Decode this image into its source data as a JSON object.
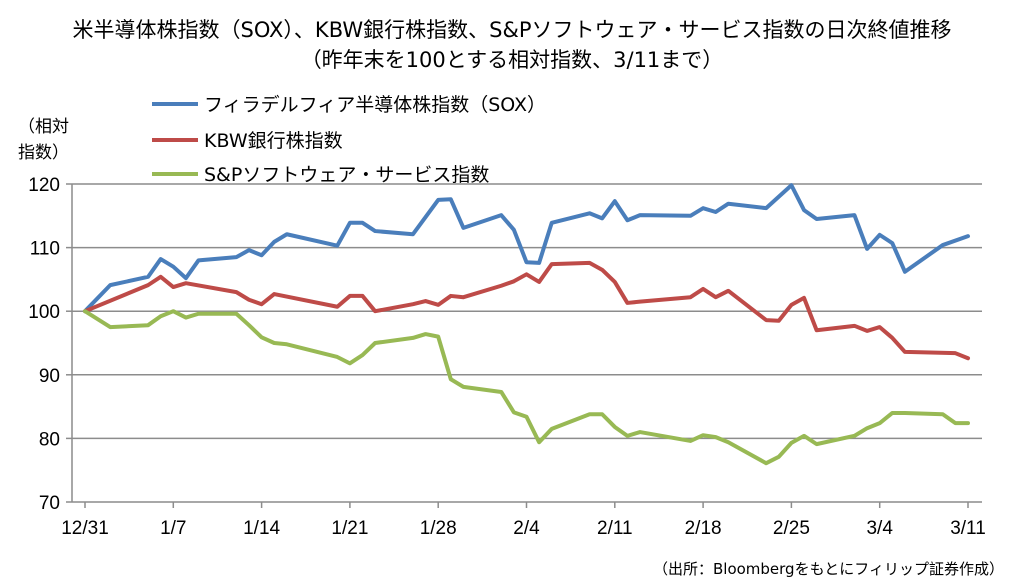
{
  "title_line1": "米半導体株指数（SOX）、KBW銀行株指数、S&Pソフトウェア・サービス指数の日次終値推移",
  "title_line2": "（昨年末を100とする相対指数、3/11まで）",
  "ylabel_line1": "（相対",
  "ylabel_line2": "指数）",
  "source": "（出所：Bloombergをもとにフィリップ証券作成）",
  "chart_data": {
    "type": "line",
    "title": "米半導体株指数（SOX）、KBW銀行株指数、S&Pソフトウェア・サービス指数の日次終値推移",
    "subtitle": "（昨年末を100とする相対指数、3/11まで）",
    "xlabel": "",
    "ylabel": "（相対指数）",
    "x_unit": "days since 12/31",
    "xlim": [
      0,
      70
    ],
    "ylim": [
      70,
      120
    ],
    "yticks": [
      70,
      80,
      90,
      100,
      110,
      120
    ],
    "xticks": [
      {
        "x": 0,
        "label": "12/31"
      },
      {
        "x": 7,
        "label": "1/7"
      },
      {
        "x": 14,
        "label": "1/14"
      },
      {
        "x": 21,
        "label": "1/21"
      },
      {
        "x": 28,
        "label": "1/28"
      },
      {
        "x": 35,
        "label": "2/4"
      },
      {
        "x": 42,
        "label": "2/11"
      },
      {
        "x": 49,
        "label": "2/18"
      },
      {
        "x": 56,
        "label": "2/25"
      },
      {
        "x": 63,
        "label": "3/4"
      },
      {
        "x": 70,
        "label": "3/11"
      }
    ],
    "grid": true,
    "legend_position": "top-left",
    "series": [
      {
        "name": "フィラデルフィア半導体株指数（SOX）",
        "color": "#4a7ebb",
        "points": [
          [
            0,
            100
          ],
          [
            2,
            104.1
          ],
          [
            5,
            105.4
          ],
          [
            6,
            108.2
          ],
          [
            7,
            107.0
          ],
          [
            8,
            105.2
          ],
          [
            9,
            108.0
          ],
          [
            12,
            108.5
          ],
          [
            13,
            109.6
          ],
          [
            14,
            108.8
          ],
          [
            15,
            110.9
          ],
          [
            16,
            112.1
          ],
          [
            20,
            110.3
          ],
          [
            21,
            113.9
          ],
          [
            22,
            113.9
          ],
          [
            23,
            112.6
          ],
          [
            26,
            112.1
          ],
          [
            28,
            117.5
          ],
          [
            29,
            117.6
          ],
          [
            30,
            113.1
          ],
          [
            33,
            115.1
          ],
          [
            34,
            112.8
          ],
          [
            35,
            107.7
          ],
          [
            36,
            107.6
          ],
          [
            37,
            113.9
          ],
          [
            40,
            115.4
          ],
          [
            41,
            114.6
          ],
          [
            42,
            117.3
          ],
          [
            43,
            114.3
          ],
          [
            44,
            115.1
          ],
          [
            48,
            115.0
          ],
          [
            49,
            116.2
          ],
          [
            50,
            115.6
          ],
          [
            51,
            116.9
          ],
          [
            54,
            116.2
          ],
          [
            56,
            119.8
          ],
          [
            57,
            115.9
          ],
          [
            58,
            114.5
          ],
          [
            61,
            115.1
          ],
          [
            62,
            109.8
          ],
          [
            63,
            112.0
          ],
          [
            64,
            110.7
          ],
          [
            65,
            106.2
          ],
          [
            68,
            110.4
          ],
          [
            70,
            111.8
          ]
        ]
      },
      {
        "name": "KBW銀行株指数",
        "color": "#be4b48",
        "points": [
          [
            0,
            100
          ],
          [
            5,
            104.1
          ],
          [
            6,
            105.4
          ],
          [
            7,
            103.8
          ],
          [
            8,
            104.4
          ],
          [
            12,
            103.0
          ],
          [
            13,
            101.8
          ],
          [
            14,
            101.1
          ],
          [
            15,
            102.7
          ],
          [
            20,
            100.7
          ],
          [
            21,
            102.4
          ],
          [
            22,
            102.4
          ],
          [
            23,
            100.0
          ],
          [
            26,
            101.1
          ],
          [
            27,
            101.6
          ],
          [
            28,
            101.0
          ],
          [
            29,
            102.4
          ],
          [
            30,
            102.2
          ],
          [
            33,
            104.0
          ],
          [
            34,
            104.7
          ],
          [
            35,
            105.8
          ],
          [
            36,
            104.6
          ],
          [
            37,
            107.4
          ],
          [
            40,
            107.6
          ],
          [
            41,
            106.5
          ],
          [
            42,
            104.6
          ],
          [
            43,
            101.3
          ],
          [
            44,
            101.5
          ],
          [
            48,
            102.2
          ],
          [
            49,
            103.5
          ],
          [
            50,
            102.2
          ],
          [
            51,
            103.2
          ],
          [
            54,
            98.6
          ],
          [
            55,
            98.5
          ],
          [
            56,
            101.0
          ],
          [
            57,
            102.1
          ],
          [
            58,
            97.0
          ],
          [
            61,
            97.7
          ],
          [
            62,
            96.9
          ],
          [
            63,
            97.5
          ],
          [
            64,
            95.8
          ],
          [
            65,
            93.6
          ],
          [
            69,
            93.4
          ],
          [
            70,
            92.6
          ]
        ]
      },
      {
        "name": "S&Pソフトウェア・サービス指数",
        "color": "#98b954",
        "points": [
          [
            0,
            100
          ],
          [
            2,
            97.5
          ],
          [
            5,
            97.8
          ],
          [
            6,
            99.2
          ],
          [
            7,
            100.0
          ],
          [
            8,
            99.0
          ],
          [
            9,
            99.6
          ],
          [
            12,
            99.6
          ],
          [
            13,
            97.8
          ],
          [
            14,
            95.9
          ],
          [
            15,
            95.0
          ],
          [
            16,
            94.8
          ],
          [
            20,
            92.8
          ],
          [
            21,
            91.8
          ],
          [
            22,
            93.1
          ],
          [
            23,
            95.0
          ],
          [
            26,
            95.8
          ],
          [
            27,
            96.4
          ],
          [
            28,
            96.0
          ],
          [
            29,
            89.3
          ],
          [
            30,
            88.1
          ],
          [
            33,
            87.3
          ],
          [
            34,
            84.1
          ],
          [
            35,
            83.4
          ],
          [
            36,
            79.4
          ],
          [
            37,
            81.5
          ],
          [
            40,
            83.8
          ],
          [
            41,
            83.8
          ],
          [
            42,
            81.8
          ],
          [
            43,
            80.4
          ],
          [
            44,
            81.0
          ],
          [
            48,
            79.6
          ],
          [
            49,
            80.5
          ],
          [
            50,
            80.2
          ],
          [
            51,
            79.4
          ],
          [
            54,
            76.1
          ],
          [
            55,
            77.1
          ],
          [
            56,
            79.3
          ],
          [
            57,
            80.4
          ],
          [
            58,
            79.1
          ],
          [
            61,
            80.4
          ],
          [
            62,
            81.6
          ],
          [
            63,
            82.4
          ],
          [
            64,
            84.0
          ],
          [
            65,
            84.0
          ],
          [
            68,
            83.8
          ],
          [
            69,
            82.4
          ],
          [
            70,
            82.4
          ]
        ]
      }
    ]
  }
}
